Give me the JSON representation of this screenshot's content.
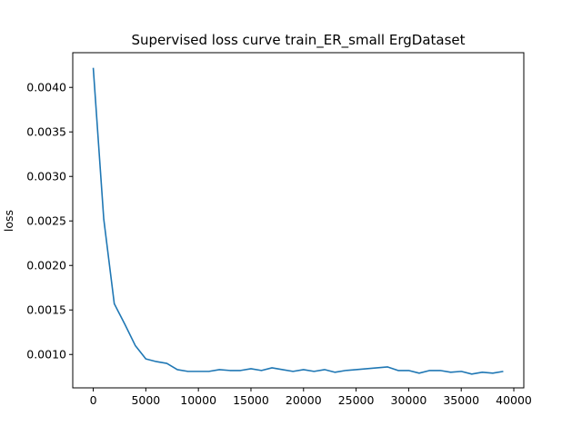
{
  "chart_data": {
    "type": "line",
    "title": "Supervised loss curve train_ER_small ErgDataset",
    "xlabel": "",
    "ylabel": "loss",
    "xlim": [
      -1950,
      40950
    ],
    "ylim": [
      0.000625,
      0.00439
    ],
    "xticks": [
      0,
      5000,
      10000,
      15000,
      20000,
      25000,
      30000,
      35000,
      40000
    ],
    "xtick_labels": [
      "0",
      "5000",
      "10000",
      "15000",
      "20000",
      "25000",
      "30000",
      "35000",
      "40000"
    ],
    "yticks": [
      0.001,
      0.0015,
      0.002,
      0.0025,
      0.003,
      0.0035,
      0.004
    ],
    "ytick_labels": [
      "0.0010",
      "0.0015",
      "0.0020",
      "0.0025",
      "0.0030",
      "0.0035",
      "0.0040"
    ],
    "grid": false,
    "series": [
      {
        "color": "#1f77b4",
        "x": [
          0,
          1000,
          2000,
          3000,
          4000,
          5000,
          6000,
          7000,
          8000,
          9000,
          10000,
          11000,
          12000,
          13000,
          14000,
          15000,
          16000,
          17000,
          18000,
          19000,
          20000,
          21000,
          22000,
          23000,
          24000,
          25000,
          26000,
          27000,
          28000,
          29000,
          30000,
          31000,
          32000,
          33000,
          34000,
          35000,
          36000,
          37000,
          38000,
          39000
        ],
        "y": [
          0.00422,
          0.00252,
          0.00157,
          0.00134,
          0.0011,
          0.00095,
          0.00092,
          0.0009,
          0.00083,
          0.00081,
          0.00081,
          0.00081,
          0.00083,
          0.00082,
          0.00082,
          0.00084,
          0.00082,
          0.00085,
          0.00083,
          0.00081,
          0.00083,
          0.00081,
          0.00083,
          0.0008,
          0.00082,
          0.00083,
          0.00084,
          0.00085,
          0.00086,
          0.00082,
          0.00082,
          0.00079,
          0.00082,
          0.00082,
          0.0008,
          0.00081,
          0.00078,
          0.0008,
          0.00079,
          0.00081
        ]
      }
    ]
  }
}
